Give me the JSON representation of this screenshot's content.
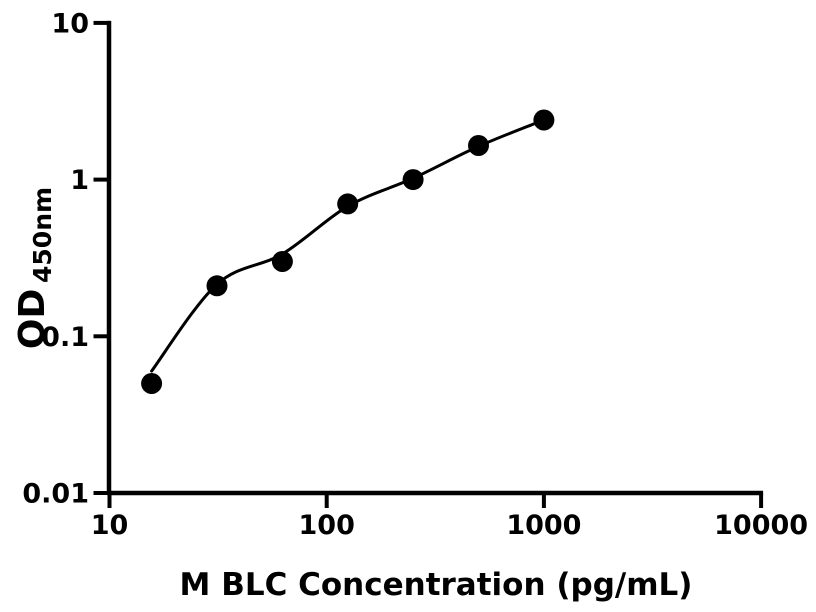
{
  "figure": {
    "background_color": "#ffffff",
    "foreground_color": "#000000"
  },
  "chart_data": {
    "type": "scatter",
    "title": "",
    "xlabel": "M BLC Concentration (pg/mL)",
    "ylabel_base": "OD",
    "ylabel_sub": "450nm",
    "x_scale": "log",
    "y_scale": "log",
    "xlim": [
      10,
      10000
    ],
    "ylim": [
      0.01,
      10
    ],
    "x_ticks": [
      10,
      100,
      1000,
      10000
    ],
    "x_tick_labels": [
      "10",
      "100",
      "1000",
      "10000"
    ],
    "y_ticks": [
      10,
      1,
      0.1,
      0.01
    ],
    "y_tick_labels": [
      "10",
      "1",
      "0.1",
      "0.01"
    ],
    "grid": false,
    "legend": null,
    "marker_color": "#000000",
    "line_color": "#000000",
    "series": [
      {
        "name": "standard-points",
        "type": "scatter",
        "marker": "filled-circle",
        "x": [
          15.625,
          31.25,
          62.5,
          125,
          250,
          500,
          1000
        ],
        "y": [
          0.05,
          0.21,
          0.3,
          0.7,
          1.0,
          1.65,
          2.4
        ]
      },
      {
        "name": "fit-curve",
        "type": "line",
        "x": [
          15.625,
          31.25,
          62.5,
          125,
          250,
          500,
          1000
        ],
        "y": [
          0.06,
          0.215,
          0.335,
          0.675,
          1.02,
          1.63,
          2.4
        ]
      }
    ]
  }
}
